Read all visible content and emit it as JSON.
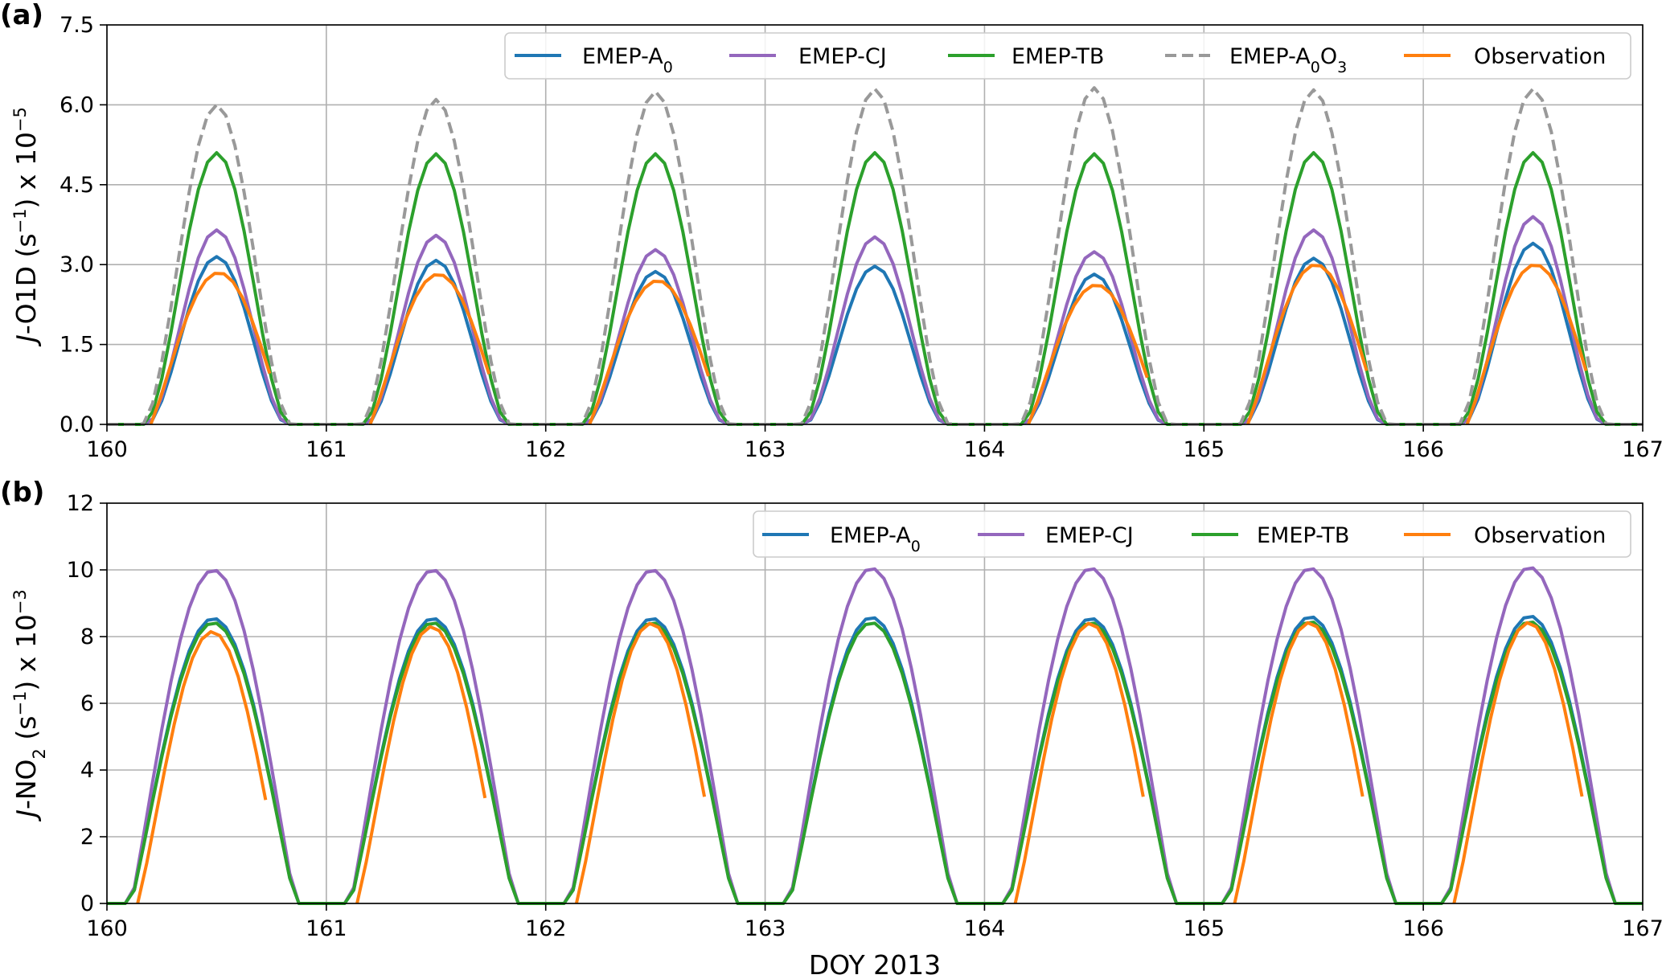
{
  "chart_data": [
    {
      "type": "line",
      "panel_label": "(a)",
      "ylabel_html": "<tspan font-style='italic'>J</tspan>-O1D (s<tspan baseline-shift='super' font-size='21'>−1</tspan>) x 10<tspan baseline-shift='super' font-size='21'>−5</tspan>",
      "xlabel": "",
      "xlim": [
        160,
        167
      ],
      "ylim": [
        0,
        7.5
      ],
      "xticks": [
        "160",
        "161",
        "162",
        "163",
        "164",
        "165",
        "166",
        "167"
      ],
      "yticks": [
        "0.0",
        "1.5",
        "3.0",
        "4.5",
        "6.0",
        "7.5"
      ],
      "ytick_values": [
        0,
        1.5,
        3.0,
        4.5,
        6.0,
        7.5
      ],
      "grid": true,
      "legend_position": "top-right",
      "legend": [
        "EMEP-A0",
        "EMEP-CJ",
        "EMEP-TB",
        "EMEP-A0O3",
        "Observation"
      ],
      "series": [
        {
          "name": "EMEP-A₀",
          "color": "#1f77b4",
          "dash": false,
          "peaks": [
            3.15,
            3.08,
            2.87,
            2.97,
            2.82,
            3.12,
            3.4
          ],
          "start": 0.18,
          "end": 0.82,
          "obs": false
        },
        {
          "name": "EMEP-CJ",
          "color": "#9467bd",
          "dash": false,
          "peaks": [
            3.65,
            3.55,
            3.28,
            3.52,
            3.24,
            3.65,
            3.9
          ],
          "start": 0.18,
          "end": 0.82,
          "obs": false
        },
        {
          "name": "EMEP-TB",
          "color": "#2ca02c",
          "dash": false,
          "peaks": [
            5.1,
            5.08,
            5.08,
            5.1,
            5.08,
            5.1,
            5.1
          ],
          "start": 0.17,
          "end": 0.83,
          "obs": false
        },
        {
          "name": "EMEP-A₀O₃",
          "color": "#999999",
          "dash": true,
          "peaks": [
            6.0,
            6.1,
            6.25,
            6.3,
            6.32,
            6.28,
            6.3
          ],
          "start": 0.16,
          "end": 0.84,
          "obs": false
        },
        {
          "name": "Observation",
          "color": "#ff7f0e",
          "dash": false,
          "peaks": [
            2.85,
            2.82,
            2.7,
            0,
            2.62,
            3.0,
            3.0
          ],
          "start": 0.2,
          "end": 0.76,
          "obs": true
        }
      ]
    },
    {
      "type": "line",
      "panel_label": "(b)",
      "ylabel_html": "<tspan font-style='italic'>J</tspan>-NO<tspan baseline-shift='sub' font-size='21'>2</tspan> (s<tspan baseline-shift='super' font-size='21'>−1</tspan>) x 10<tspan baseline-shift='super' font-size='21'>−3</tspan>",
      "xlabel": "DOY 2013",
      "xlim": [
        160,
        167
      ],
      "ylim": [
        0,
        12
      ],
      "xticks": [
        "160",
        "161",
        "162",
        "163",
        "164",
        "165",
        "166",
        "167"
      ],
      "yticks": [
        "0",
        "2",
        "4",
        "6",
        "8",
        "10",
        "12"
      ],
      "ytick_values": [
        0,
        2,
        4,
        6,
        8,
        10,
        12
      ],
      "grid": true,
      "legend_position": "top-right",
      "legend": [
        "EMEP-A0",
        "EMEP-CJ",
        "EMEP-TB",
        "Observation"
      ],
      "series": [
        {
          "name": "EMEP-A₀",
          "color": "#1f77b4",
          "dash": false,
          "peaks": [
            8.55,
            8.55,
            8.55,
            8.58,
            8.55,
            8.6,
            8.62
          ],
          "start": 0.11,
          "end": 0.86,
          "obs": false
        },
        {
          "name": "EMEP-CJ",
          "color": "#9467bd",
          "dash": false,
          "peaks": [
            10.0,
            10.0,
            10.0,
            10.05,
            10.05,
            10.05,
            10.08
          ],
          "start": 0.11,
          "end": 0.86,
          "obs": false
        },
        {
          "name": "EMEP-TB",
          "color": "#2ca02c",
          "dash": false,
          "peaks": [
            8.42,
            8.42,
            8.42,
            8.42,
            8.42,
            8.45,
            8.45
          ],
          "start": 0.11,
          "end": 0.86,
          "obs": false
        },
        {
          "name": "Observation",
          "color": "#ff7f0e",
          "dash": false,
          "peaks": [
            8.15,
            8.3,
            8.4,
            0,
            8.4,
            8.42,
            8.42
          ],
          "start": 0.14,
          "end": 0.76,
          "obs": true
        }
      ]
    }
  ],
  "legend_labels_a": {
    "a0": "EMEP-A0",
    "cj": "EMEP-CJ",
    "tb": "EMEP-TB",
    "a0o3": "EMEP-A0O3",
    "obs": "Observation"
  },
  "legend_labels_b": {
    "a0": "EMEP-A0",
    "cj": "EMEP-CJ",
    "tb": "EMEP-TB",
    "obs": "Observation"
  }
}
